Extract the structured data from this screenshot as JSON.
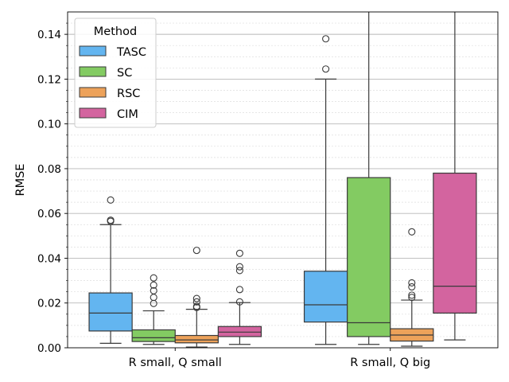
{
  "chart_data": {
    "type": "box",
    "title": "",
    "xlabel": "",
    "ylabel": "RMSE",
    "ylim": [
      0,
      0.15
    ],
    "yticks": [
      "0.00",
      "0.02",
      "0.04",
      "0.06",
      "0.08",
      "0.10",
      "0.12",
      "0.14"
    ],
    "categories": [
      "R small, Q small",
      "R small, Q big"
    ],
    "grid": "major and minor horizontal",
    "legend": {
      "title": "Method",
      "position": "top-left"
    },
    "series": [
      {
        "name": "TASC",
        "color": "#63b5f0",
        "boxes": [
          {
            "whislo": 0.002,
            "q1": 0.0075,
            "med": 0.0155,
            "q3": 0.0245,
            "whishi": 0.055,
            "fliers": [
              0.0565,
              0.057,
              0.066
            ]
          },
          {
            "whislo": 0.0015,
            "q1": 0.0115,
            "med": 0.0192,
            "q3": 0.0342,
            "whishi": 0.12,
            "fliers": [
              0.1245,
              0.138
            ]
          }
        ]
      },
      {
        "name": "SC",
        "color": "#83cb62",
        "boxes": [
          {
            "whislo": 0.0015,
            "q1": 0.0028,
            "med": 0.0045,
            "q3": 0.008,
            "whishi": 0.0165,
            "fliers": [
              0.0198,
              0.0225,
              0.0255,
              0.028,
              0.0312
            ]
          },
          {
            "whislo": 0.0015,
            "q1": 0.005,
            "med": 0.0112,
            "q3": 0.076,
            "whishi": 0.16,
            "fliers": []
          }
        ]
      },
      {
        "name": "RSC",
        "color": "#eda25a",
        "boxes": [
          {
            "whislo": 0.0003,
            "q1": 0.0022,
            "med": 0.0035,
            "q3": 0.0055,
            "whishi": 0.0172,
            "fliers": [
              0.018,
              0.0185,
              0.0205,
              0.022,
              0.0435
            ]
          },
          {
            "whislo": 0.0007,
            "q1": 0.003,
            "med": 0.0057,
            "q3": 0.0085,
            "whishi": 0.0213,
            "fliers": [
              0.0225,
              0.0235,
              0.0272,
              0.029,
              0.0518
            ]
          }
        ]
      },
      {
        "name": "CIM",
        "color": "#d3649f",
        "boxes": [
          {
            "whislo": 0.0015,
            "q1": 0.005,
            "med": 0.007,
            "q3": 0.0095,
            "whishi": 0.0202,
            "fliers": [
              0.0205,
              0.026,
              0.0345,
              0.0362,
              0.0422
            ]
          },
          {
            "whislo": 0.0035,
            "q1": 0.0155,
            "med": 0.0275,
            "q3": 0.078,
            "whishi": 0.16,
            "fliers": []
          }
        ]
      }
    ]
  }
}
